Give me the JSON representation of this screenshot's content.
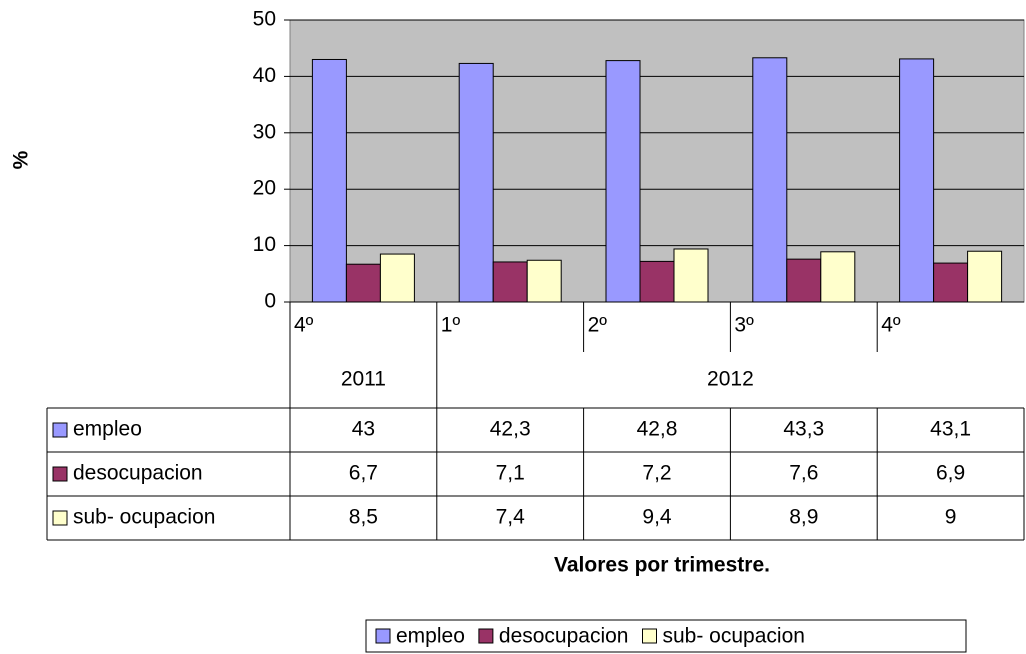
{
  "chart_data": {
    "type": "bar",
    "y_label": "%",
    "x_label": "Valores por trimestre.",
    "categories": [
      "4º",
      "1º",
      "2º",
      "3º",
      "4º"
    ],
    "category_groups": [
      {
        "label": "2011",
        "span": 1
      },
      {
        "label": "2012",
        "span": 4
      }
    ],
    "series": [
      {
        "name": "empleo",
        "color": "#9999ff",
        "values": [
          43,
          42.3,
          42.8,
          43.3,
          43.1
        ],
        "value_labels": [
          "43",
          "42,3",
          "42,8",
          "43,3",
          "43,1"
        ]
      },
      {
        "name": "desocupacion",
        "color": "#993366",
        "values": [
          6.7,
          7.1,
          7.2,
          7.6,
          6.9
        ],
        "value_labels": [
          "6,7",
          "7,1",
          "7,2",
          "7,6",
          "6,9"
        ]
      },
      {
        "name": "sub- ocupacion",
        "color": "#ffffcc",
        "values": [
          8.5,
          7.4,
          9.4,
          8.9,
          9
        ],
        "value_labels": [
          "8,5",
          "7,4",
          "9,4",
          "8,9",
          "9"
        ]
      }
    ],
    "ylim": [
      0,
      50
    ],
    "yticks": [
      0,
      10,
      20,
      30,
      40,
      50
    ],
    "grid": true,
    "plot_background": "#c0c0c0",
    "legend": "bottom"
  }
}
